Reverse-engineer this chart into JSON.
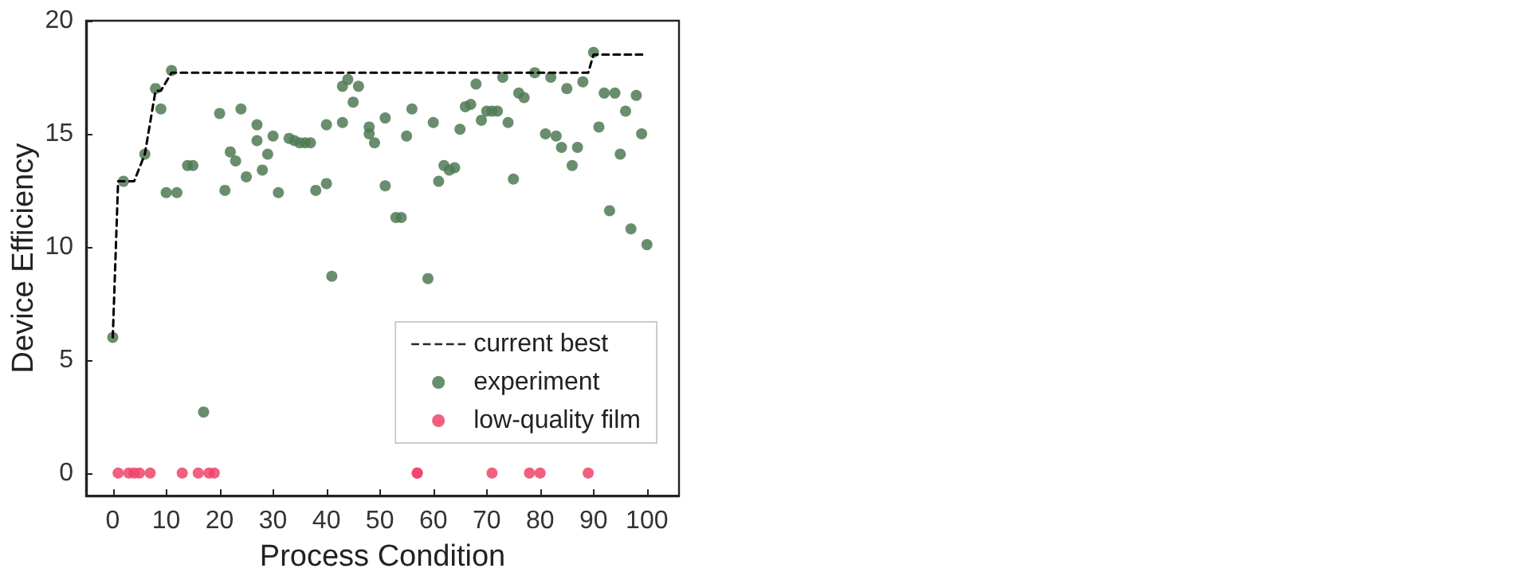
{
  "chart_data": {
    "type": "scatter",
    "xlabel": "Process Condition",
    "ylabel": "Device Efficiency",
    "xlim": [
      -5,
      106
    ],
    "ylim": [
      -1,
      20
    ],
    "xticks": [
      0,
      10,
      20,
      30,
      40,
      50,
      60,
      70,
      80,
      90,
      100
    ],
    "yticks": [
      0,
      5,
      10,
      15,
      20
    ],
    "grid": false,
    "legend": "bottom right",
    "series": [
      {
        "name": "current best",
        "type": "line",
        "color": "#000000",
        "line_style": "dashed",
        "marker": "none",
        "x": [
          0,
          1,
          4,
          6,
          8,
          9,
          11,
          89,
          90,
          100
        ],
        "values": [
          6.0,
          12.9,
          12.9,
          14.1,
          16.9,
          16.9,
          17.7,
          17.7,
          18.5,
          18.5
        ]
      },
      {
        "name": "experiment",
        "color": "#4f7a55",
        "marker": "circle",
        "x": [
          0,
          2,
          6,
          8,
          9,
          11,
          10,
          12,
          14,
          15,
          20,
          21,
          22,
          23,
          24,
          25,
          27,
          27,
          28,
          29,
          31,
          30,
          33,
          34,
          35,
          36,
          37,
          38,
          40,
          40,
          41,
          43,
          43,
          44,
          45,
          46,
          48,
          48,
          49,
          51,
          51,
          53,
          54,
          55,
          56,
          59,
          60,
          61,
          62,
          63,
          64,
          65,
          66,
          67,
          68,
          69,
          70,
          71,
          72,
          73,
          74,
          75,
          76,
          77,
          79,
          81,
          82,
          83,
          84,
          85,
          86,
          87,
          88,
          90,
          91,
          92,
          94,
          93,
          95,
          96,
          97,
          98,
          99,
          100,
          17
        ],
        "values": [
          6.0,
          12.9,
          14.1,
          17.0,
          16.1,
          17.8,
          12.4,
          12.4,
          13.6,
          13.6,
          15.9,
          12.5,
          14.2,
          13.8,
          16.1,
          13.1,
          14.7,
          15.4,
          13.4,
          14.1,
          12.4,
          14.9,
          14.8,
          14.7,
          14.6,
          14.6,
          14.6,
          12.5,
          12.8,
          15.4,
          8.7,
          15.5,
          17.1,
          17.4,
          16.4,
          17.1,
          15.0,
          15.3,
          14.6,
          15.7,
          12.7,
          11.3,
          11.3,
          14.9,
          16.1,
          8.6,
          15.5,
          12.9,
          13.6,
          13.4,
          13.5,
          15.2,
          16.2,
          16.3,
          17.2,
          15.6,
          16.0,
          16.0,
          16.0,
          17.5,
          15.5,
          13.0,
          16.8,
          16.6,
          17.7,
          15.0,
          17.5,
          14.9,
          14.4,
          17.0,
          13.6,
          14.4,
          17.3,
          18.6,
          15.3,
          16.8,
          16.8,
          11.6,
          14.1,
          16.0,
          10.8,
          16.7,
          15.0,
          10.1,
          2.7
        ]
      },
      {
        "name": "low-quality film",
        "color": "#f0446a",
        "marker": "circle",
        "x": [
          1,
          3,
          4,
          5,
          7,
          13,
          16,
          18,
          19,
          57,
          57,
          71,
          78,
          80,
          89
        ],
        "values": [
          0,
          0,
          0,
          0,
          0,
          0,
          0,
          0,
          0,
          0,
          0,
          0,
          0,
          0,
          0
        ]
      }
    ]
  }
}
